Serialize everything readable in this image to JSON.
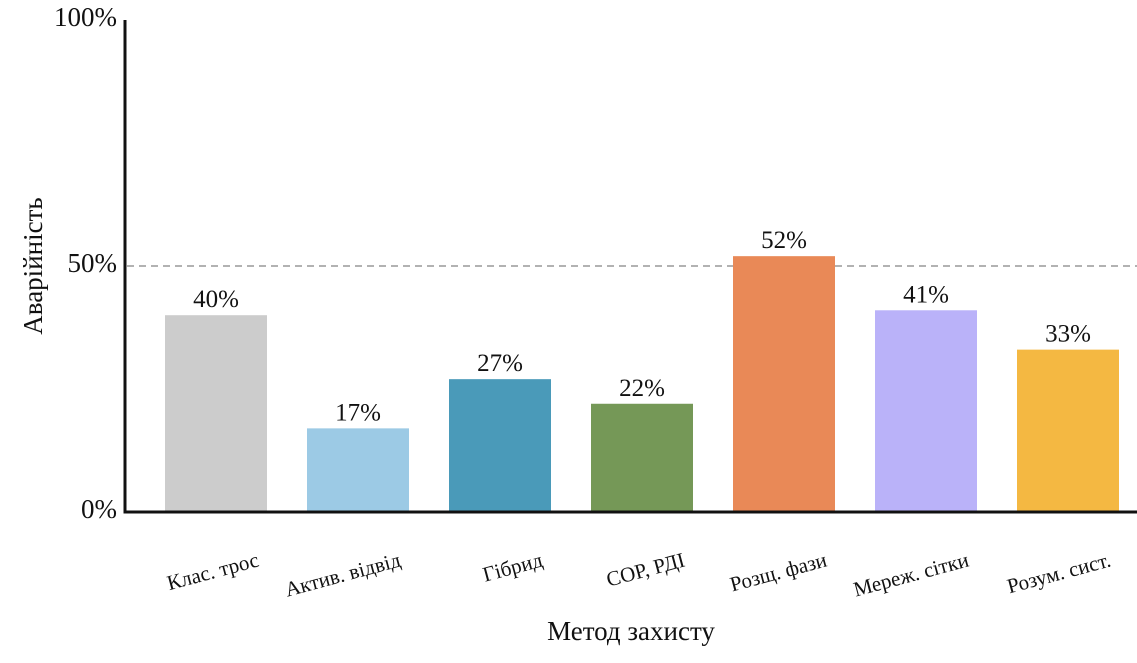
{
  "chart_data": {
    "type": "bar",
    "xlabel": "Метод захисту",
    "ylabel": "Аварійність",
    "ylim": [
      0,
      100
    ],
    "yticks": [
      {
        "value": 0,
        "label": "0%"
      },
      {
        "value": 50,
        "label": "50%"
      },
      {
        "value": 100,
        "label": "100%"
      }
    ],
    "reference_line": {
      "value": 50,
      "style": "dashed",
      "color": "#999999"
    },
    "grid": false,
    "legend": "none",
    "categories": [
      "Клас. трос",
      "Актив. відвід",
      "Гібрид",
      "СОР, РДІ",
      "Розщ. фази",
      "Мереж. сітки",
      "Розум. сист."
    ],
    "values": [
      40,
      17,
      27,
      22,
      52,
      41,
      33
    ],
    "value_labels": [
      "40%",
      "17%",
      "27%",
      "22%",
      "52%",
      "41%",
      "33%"
    ],
    "colors": [
      "#cccccc",
      "#9ccae5",
      "#4a9ab9",
      "#759857",
      "#e98957",
      "#bab2f9",
      "#f4b842"
    ]
  }
}
